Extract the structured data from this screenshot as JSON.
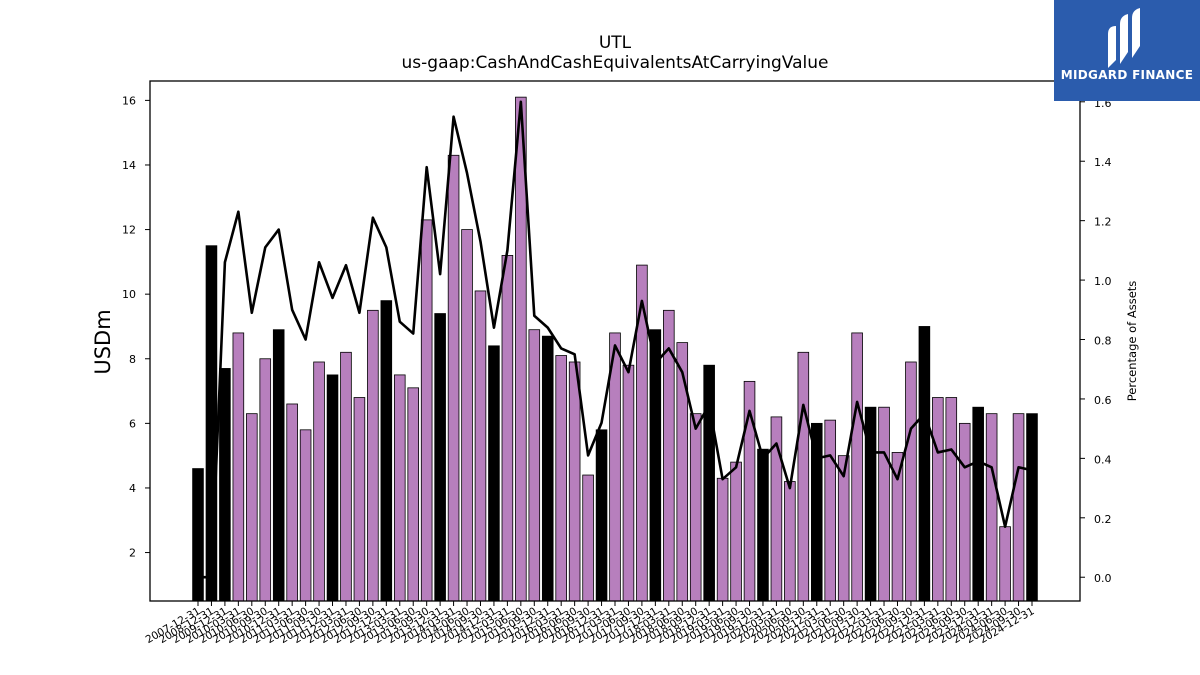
{
  "chart_data": {
    "type": "bar",
    "title": "UTL",
    "subtitle": "us-gaap:CashAndCashEquivalentsAtCarryingValue",
    "ylabel": "USDm",
    "y2label": "Percentage of Assets",
    "ylim": [
      0.5,
      16.6
    ],
    "y2lim": [
      -0.08,
      1.67
    ],
    "yticks": [
      "2",
      "4",
      "6",
      "8",
      "10",
      "12",
      "14",
      "16"
    ],
    "y2ticks": [
      "0.0",
      "0.2",
      "0.4",
      "0.6",
      "0.8",
      "1.0",
      "1.2",
      "1.4",
      "1.6"
    ],
    "colors": {
      "annual_bar": "#000000",
      "quarter_bar": "#b77fbd",
      "line": "#000000"
    },
    "categories": [
      "2007-12-31",
      "2008-12-31",
      "2009-12-31",
      "2010-03-31",
      "2010-06-30",
      "2010-09-30",
      "2010-12-31",
      "2011-03-31",
      "2011-06-30",
      "2011-09-30",
      "2011-12-31",
      "2012-03-31",
      "2012-06-30",
      "2012-09-30",
      "2012-12-31",
      "2013-03-31",
      "2013-06-30",
      "2013-09-30",
      "2013-12-31",
      "2014-03-31",
      "2014-06-30",
      "2014-09-30",
      "2014-12-31",
      "2015-03-31",
      "2015-06-30",
      "2015-09-30",
      "2015-12-31",
      "2016-03-31",
      "2016-06-30",
      "2016-09-30",
      "2016-12-31",
      "2017-03-31",
      "2017-06-30",
      "2017-09-30",
      "2017-12-31",
      "2018-03-31",
      "2018-06-30",
      "2018-09-30",
      "2018-12-31",
      "2019-03-31",
      "2019-06-30",
      "2019-09-30",
      "2019-12-31",
      "2020-03-31",
      "2020-06-30",
      "2020-09-30",
      "2020-12-31",
      "2021-03-31",
      "2021-06-30",
      "2021-09-30",
      "2021-12-31",
      "2022-03-31",
      "2022-06-30",
      "2022-09-30",
      "2022-12-31",
      "2023-03-31",
      "2023-06-30",
      "2023-09-30",
      "2023-12-31",
      "2024-03-31",
      "2024-06-30",
      "2024-09-30",
      "2024-12-31"
    ],
    "xtick_labels": [
      "2007-12-31",
      "2008-12-31",
      "2009-12-31",
      "2010-03-31",
      "2010-06-30",
      "2010-09-30",
      "2010-12-31",
      "2011-03-31",
      "2011-06-30",
      "2011-09-30",
      "2011-12-31",
      "2012-03-31",
      "2012-06-30",
      "2012-09-30",
      "2012-12-31",
      "2013-03-31",
      "2013-06-30",
      "2013-09-30",
      "2013-12-31",
      "2014-03-31",
      "2014-06-30",
      "2014-09-30",
      "2014-12-31",
      "2015-03-31",
      "2015-06-30",
      "2015-09-30",
      "2015-12-31",
      "2016-03-31",
      "2016-06-30",
      "2016-09-30",
      "2016-12-31",
      "2017-03-31",
      "2017-06-30",
      "2017-09-30",
      "2017-12-31",
      "2018-03-31",
      "2018-06-30",
      "2018-09-30",
      "2018-12-31",
      "2019-03-31",
      "2019-06-30",
      "2019-09-30",
      "2019-12-31",
      "2020-03-31",
      "2020-06-30",
      "2020-09-30",
      "2020-12-31",
      "2021-03-31",
      "2021-06-30",
      "2021-09-30",
      "2021-12-31",
      "2022-03-31",
      "2022-06-30",
      "2022-09-30",
      "2022-12-31",
      "2023-03-31",
      "2023-06-30",
      "2023-09-30",
      "2023-12-31",
      "2024-03-31",
      "2024-06-30",
      "2024-09-30",
      "2024-12-31"
    ],
    "series": [
      {
        "type": "bar",
        "values": [
          4.6,
          11.5,
          7.7,
          8.8,
          6.3,
          8.0,
          8.9,
          6.6,
          5.8,
          7.9,
          7.5,
          8.2,
          6.8,
          9.5,
          9.8,
          7.5,
          7.1,
          12.3,
          9.4,
          14.3,
          12.0,
          10.1,
          8.4,
          11.2,
          16.1,
          8.9,
          8.7,
          8.1,
          7.9,
          4.4,
          5.8,
          8.8,
          7.8,
          10.9,
          8.9,
          9.5,
          8.5,
          6.3,
          7.8,
          4.3,
          4.8,
          7.3,
          5.2,
          6.2,
          4.2,
          8.2,
          6.0,
          6.1,
          5.0,
          8.8,
          6.5,
          6.5,
          5.1,
          7.9,
          9.0,
          6.8,
          6.8,
          6.0,
          6.5,
          6.3,
          2.8,
          6.3,
          6.3
        ],
        "annual": [
          true,
          true,
          true,
          false,
          false,
          false,
          true,
          false,
          false,
          false,
          true,
          false,
          false,
          false,
          true,
          false,
          false,
          false,
          true,
          false,
          false,
          false,
          true,
          false,
          false,
          false,
          true,
          false,
          false,
          false,
          true,
          false,
          false,
          false,
          true,
          false,
          false,
          false,
          true,
          false,
          false,
          false,
          true,
          false,
          false,
          false,
          true,
          false,
          false,
          false,
          true,
          false,
          false,
          false,
          true,
          false,
          false,
          false,
          true,
          false,
          false,
          false,
          true
        ]
      },
      {
        "type": "line",
        "axis": "secondary",
        "values": [
          0.0,
          0.0,
          1.06,
          1.23,
          0.89,
          1.11,
          1.17,
          0.9,
          0.8,
          1.06,
          0.94,
          1.05,
          0.89,
          1.21,
          1.11,
          0.86,
          0.82,
          1.38,
          1.02,
          1.55,
          1.36,
          1.13,
          0.84,
          1.1,
          1.6,
          0.88,
          0.84,
          0.77,
          0.75,
          0.41,
          0.52,
          0.78,
          0.69,
          0.93,
          0.72,
          0.77,
          0.69,
          0.5,
          0.58,
          0.33,
          0.37,
          0.56,
          0.4,
          0.45,
          0.3,
          0.58,
          0.4,
          0.41,
          0.34,
          0.59,
          0.42,
          0.42,
          0.33,
          0.5,
          0.55,
          0.42,
          0.43,
          0.37,
          0.39,
          0.37,
          0.17,
          0.37,
          0.36
        ]
      }
    ]
  },
  "logo": {
    "text": "MIDGARD FINANCE"
  }
}
